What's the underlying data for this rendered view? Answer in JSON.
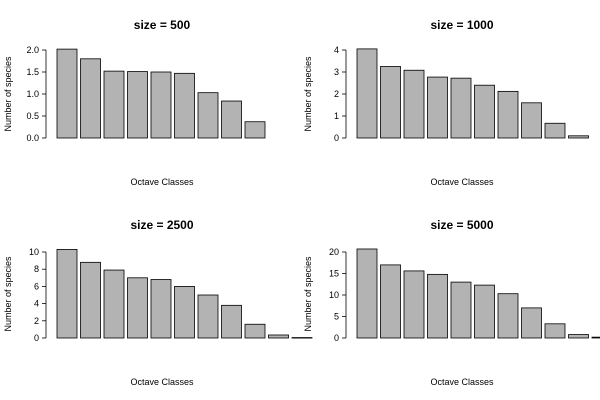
{
  "chart_data": [
    {
      "type": "bar",
      "title": "size = 500",
      "xlabel": "Octave Classes",
      "ylabel": "Number of species",
      "ylim": [
        0,
        2.0
      ],
      "yticks": [
        0.0,
        0.5,
        1.0,
        1.5,
        2.0
      ],
      "ytick_labels": [
        "0.0",
        "0.5",
        "1.0",
        "1.5",
        "2.0"
      ],
      "values": [
        2.02,
        1.8,
        1.52,
        1.51,
        1.5,
        1.47,
        1.03,
        0.84,
        0.37
      ],
      "bar_color": "#b3b3b3",
      "grid": false
    },
    {
      "type": "bar",
      "title": "size = 1000",
      "xlabel": "Octave Classes",
      "ylabel": "Number of species",
      "ylim": [
        0,
        4
      ],
      "yticks": [
        0,
        1,
        2,
        3,
        4
      ],
      "ytick_labels": [
        "0",
        "1",
        "2",
        "3",
        "4"
      ],
      "values": [
        4.05,
        3.25,
        3.08,
        2.77,
        2.72,
        2.4,
        2.12,
        1.6,
        0.67,
        0.1
      ],
      "bar_color": "#b3b3b3",
      "grid": false
    },
    {
      "type": "bar",
      "title": "size = 2500",
      "xlabel": "Octave Classes",
      "ylabel": "Number of species",
      "ylim": [
        0,
        10
      ],
      "yticks": [
        0,
        2,
        4,
        6,
        8,
        10
      ],
      "ytick_labels": [
        "0",
        "2",
        "4",
        "6",
        "8",
        "10"
      ],
      "values": [
        10.3,
        8.8,
        7.9,
        7.0,
        6.8,
        6.0,
        5.0,
        3.8,
        1.6,
        0.35,
        0.05
      ],
      "bar_color": "#b3b3b3",
      "grid": false
    },
    {
      "type": "bar",
      "title": "size = 5000",
      "xlabel": "Octave Classes",
      "ylabel": "Number of species",
      "ylim": [
        0,
        20
      ],
      "yticks": [
        0,
        5,
        10,
        15,
        20
      ],
      "ytick_labels": [
        "0",
        "5",
        "10",
        "15",
        "20"
      ],
      "values": [
        20.7,
        17.0,
        15.6,
        14.8,
        13.0,
        12.3,
        10.3,
        7.0,
        3.3,
        0.8,
        0.2
      ],
      "bar_color": "#b3b3b3",
      "grid": false
    }
  ]
}
